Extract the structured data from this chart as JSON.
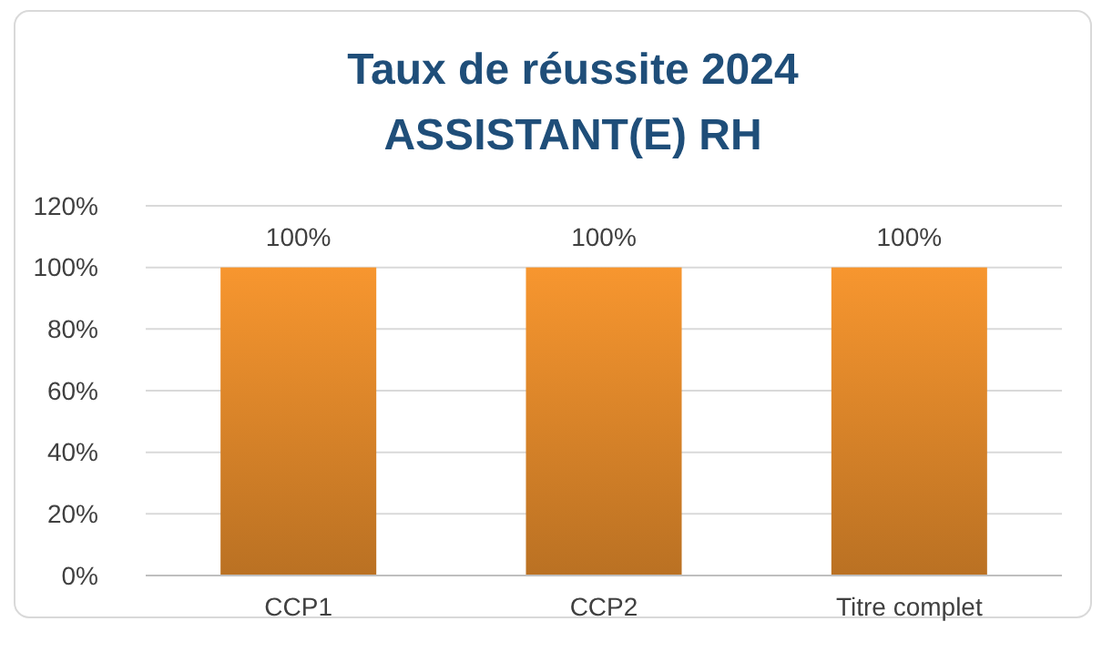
{
  "chart_data": {
    "type": "bar",
    "title": "Taux de réussite 2024",
    "subtitle": "ASSISTANT(E) RH",
    "categories": [
      "CCP1",
      "CCP2",
      "Titre complet"
    ],
    "values": [
      100,
      100,
      100
    ],
    "value_labels": [
      "100%",
      "100%",
      "100%"
    ],
    "color": "#f7962f",
    "ylim": [
      0,
      120
    ],
    "yticks": [
      {
        "value": 0,
        "label": "0%"
      },
      {
        "value": 20,
        "label": "20%"
      },
      {
        "value": 40,
        "label": "40%"
      },
      {
        "value": 60,
        "label": "60%"
      },
      {
        "value": 80,
        "label": "80%"
      },
      {
        "value": 100,
        "label": "100%"
      },
      {
        "value": 120,
        "label": "120%"
      }
    ],
    "grid": "y"
  }
}
